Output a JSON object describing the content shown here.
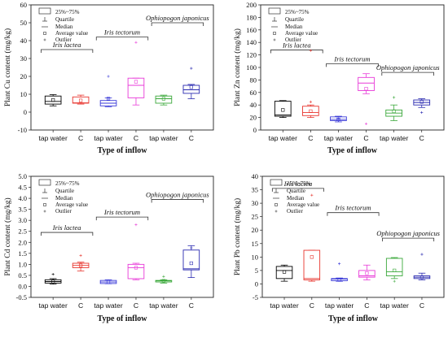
{
  "legend": {
    "box_label": "25%~75%",
    "quartile_label": "Quartile",
    "median_label": "Median",
    "mean_label": "Average value",
    "outlier_label": "Outlier"
  },
  "colors": [
    "#000000",
    "#e8352e",
    "#3a3ad8",
    "#e83ad8",
    "#3aa83a",
    "#2a2ab0"
  ],
  "chart_data": [
    {
      "type": "box",
      "title": "",
      "xlabel": "Type of inflow",
      "ylabel": "Plant Cu content (mg/kg)",
      "ylim": [
        -10,
        60
      ],
      "yticks": [
        -10,
        0,
        10,
        20,
        30,
        40,
        50,
        60
      ],
      "ytick_labels": [
        "-10",
        "0",
        "10",
        "20",
        "30",
        "40",
        "50",
        "60"
      ],
      "categories": [
        "tap water",
        "C",
        "tap water",
        "C",
        "tap water",
        "C"
      ],
      "groups": [
        {
          "label": "Iris lactea",
          "from": 0,
          "to": 1,
          "y": 35
        },
        {
          "label": "Iris tectorum",
          "from": 2,
          "to": 3,
          "y": 42
        },
        {
          "label": "Ophiopogon japonicus",
          "from": 4,
          "to": 5,
          "y": 50
        }
      ],
      "boxes": [
        {
          "min": 3.5,
          "q1": 4.5,
          "median": 6,
          "q3": 9,
          "max": 9.8,
          "mean": 6.8,
          "outliers": []
        },
        {
          "min": 4.5,
          "q1": 5,
          "median": 5.2,
          "q3": 8.5,
          "max": 9.5,
          "mean": 6.5,
          "outliers": []
        },
        {
          "min": 3,
          "q1": 3.5,
          "median": 5,
          "q3": 6.5,
          "max": 8,
          "mean": 7.5,
          "outliers": [
            20
          ]
        },
        {
          "min": 4,
          "q1": 8,
          "median": 15,
          "q3": 19,
          "max": 19,
          "mean": 17,
          "outliers": [
            39
          ]
        },
        {
          "min": 4,
          "q1": 5,
          "median": 7.5,
          "q3": 9,
          "max": 9.5,
          "mean": 7.5,
          "outliers": []
        },
        {
          "min": 7.5,
          "q1": 10.5,
          "median": 12.5,
          "q3": 15,
          "max": 15.5,
          "mean": 14,
          "outliers": [
            24.5
          ]
        }
      ]
    },
    {
      "type": "box",
      "title": "",
      "xlabel": "Type of inflow",
      "ylabel": "Plant Zn content (mg/kg)",
      "ylim": [
        0,
        200
      ],
      "yticks": [
        0,
        20,
        40,
        60,
        80,
        100,
        120,
        140,
        160,
        180,
        200
      ],
      "ytick_labels": [
        "0",
        "20",
        "40",
        "60",
        "80",
        "100",
        "120",
        "140",
        "160",
        "180",
        "200"
      ],
      "categories": [
        "tap water",
        "C",
        "tap water",
        "C",
        "tap water",
        "C"
      ],
      "groups": [
        {
          "label": "Iris lactea",
          "from": 0,
          "to": 1,
          "y": 128
        },
        {
          "label": "Iris tectorum",
          "from": 2,
          "to": 3,
          "y": 106
        },
        {
          "label": "Ophiopogon japonicus",
          "from": 4,
          "to": 5,
          "y": 92
        }
      ],
      "boxes": [
        {
          "min": 20,
          "q1": 22,
          "median": 24,
          "q3": 46,
          "max": 47,
          "mean": 32,
          "outliers": []
        },
        {
          "min": 20,
          "q1": 23,
          "median": 28,
          "q3": 38,
          "max": 40,
          "mean": 30,
          "outliers": [
            45,
            127
          ]
        },
        {
          "min": 13,
          "q1": 15,
          "median": 17,
          "q3": 21,
          "max": 22,
          "mean": 17,
          "outliers": [
            18
          ]
        },
        {
          "min": 58,
          "q1": 63,
          "median": 75,
          "q3": 84,
          "max": 90,
          "mean": 66,
          "outliers": [
            10
          ]
        },
        {
          "min": 15,
          "q1": 22,
          "median": 27,
          "q3": 32,
          "max": 40,
          "mean": 30,
          "outliers": [
            52
          ]
        },
        {
          "min": 36,
          "q1": 40,
          "median": 44,
          "q3": 48,
          "max": 50,
          "mean": 45,
          "outliers": [
            28
          ]
        }
      ]
    },
    {
      "type": "box",
      "title": "",
      "xlabel": "Type of inflow",
      "ylabel": "Plant Cd content (mg/kg)",
      "ylim": [
        -0.5,
        5.0
      ],
      "yticks": [
        -0.5,
        0,
        0.5,
        1.0,
        1.5,
        2.0,
        2.5,
        3.0,
        3.5,
        4.0,
        4.5,
        5.0
      ],
      "ytick_labels": [
        "-0.5",
        "0.0",
        "0.5",
        "1.0",
        "1.5",
        "2.0",
        "2.5",
        "3.0",
        "3.5",
        "4.0",
        "4.5",
        "5.0"
      ],
      "categories": [
        "tap water",
        "C",
        "tap water",
        "C",
        "tap water",
        "C"
      ],
      "groups": [
        {
          "label": "Iris lactea",
          "from": 0,
          "to": 1,
          "y": 2.45
        },
        {
          "label": "Iris tectorum",
          "from": 2,
          "to": 3,
          "y": 3.15
        },
        {
          "label": "Ophiopogon japonicus",
          "from": 4,
          "to": 5,
          "y": 3.95
        }
      ],
      "boxes": [
        {
          "min": 0.1,
          "q1": 0.15,
          "median": 0.22,
          "q3": 0.3,
          "max": 0.35,
          "mean": 0.22,
          "outliers": [
            0.55
          ]
        },
        {
          "min": 0.7,
          "q1": 0.85,
          "median": 0.95,
          "q3": 1.05,
          "max": 1.1,
          "mean": 0.95,
          "outliers": [
            1.4
          ]
        },
        {
          "min": 0.12,
          "q1": 0.13,
          "median": 0.2,
          "q3": 0.27,
          "max": 0.3,
          "mean": 0.2,
          "outliers": []
        },
        {
          "min": 0.3,
          "q1": 0.35,
          "median": 0.85,
          "q3": 1.0,
          "max": 1.05,
          "mean": 0.85,
          "outliers": [
            2.8
          ]
        },
        {
          "min": 0.15,
          "q1": 0.2,
          "median": 0.25,
          "q3": 0.27,
          "max": 0.3,
          "mean": 0.25,
          "outliers": [
            0.45
          ]
        },
        {
          "min": 0.4,
          "q1": 0.75,
          "median": 0.8,
          "q3": 1.65,
          "max": 1.85,
          "mean": 1.05,
          "outliers": [
            1.75
          ]
        }
      ]
    },
    {
      "type": "box",
      "title": "",
      "xlabel": "Type of inflow",
      "ylabel": "Plant Pb content (mg/kg)",
      "ylim": [
        -5,
        40
      ],
      "yticks": [
        -5,
        0,
        5,
        10,
        15,
        20,
        25,
        30,
        35,
        40
      ],
      "ytick_labels": [
        "-5",
        "0",
        "5",
        "10",
        "15",
        "20",
        "25",
        "30",
        "35",
        "40"
      ],
      "categories": [
        "tap water",
        "C",
        "tap water",
        "C",
        "tap water",
        "C"
      ],
      "groups": [
        {
          "label": "Iris lactea",
          "from": 0,
          "to": 1,
          "y": 35.5
        },
        {
          "label": "Iris tectorum",
          "from": 2,
          "to": 3,
          "y": 26.5
        },
        {
          "label": "Ophiopogon japonicus",
          "from": 4,
          "to": 5,
          "y": 17
        }
      ],
      "boxes": [
        {
          "min": 1,
          "q1": 2,
          "median": 5,
          "q3": 6.5,
          "max": 7,
          "mean": 4.5,
          "outliers": []
        },
        {
          "min": 1,
          "q1": 1.5,
          "median": 2,
          "q3": 12.5,
          "max": 12.5,
          "mean": 10,
          "outliers": [
            33
          ]
        },
        {
          "min": 1,
          "q1": 1.2,
          "median": 1.8,
          "q3": 2,
          "max": 2.2,
          "mean": 1.5,
          "outliers": [
            7.5
          ]
        },
        {
          "min": 1.5,
          "q1": 2.5,
          "median": 3,
          "q3": 5,
          "max": 7,
          "mean": 4,
          "outliers": []
        },
        {
          "min": 2,
          "q1": 3,
          "median": 4.5,
          "q3": 9.5,
          "max": 9.8,
          "mean": 5,
          "outliers": [
            1
          ]
        },
        {
          "min": 1.5,
          "q1": 2,
          "median": 2.5,
          "q3": 3,
          "max": 4,
          "mean": 2.5,
          "outliers": [
            11
          ]
        }
      ]
    }
  ]
}
